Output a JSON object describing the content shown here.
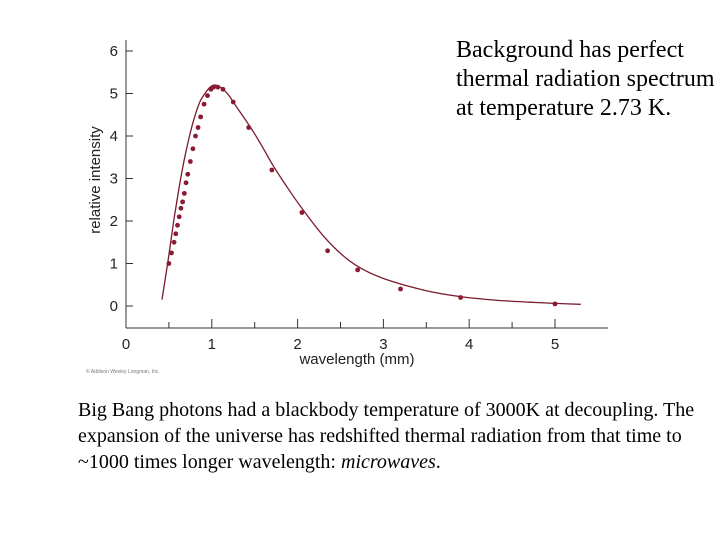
{
  "annotation": "Background has perfect thermal radiation spectrum at temperature 2.73 K.",
  "caption": {
    "text": "Big Bang photons had a blackbody temperature of 3000K at decoupling. The expansion of the universe has redshifted thermal radiation from that time to ~1000 times longer wavelength: ",
    "emphasis": "microwaves",
    "end": "."
  },
  "credit": "© Addison Wesley Longman, Inc.",
  "chart_data": {
    "type": "scatter",
    "title": "",
    "xlabel": "wavelength (mm)",
    "ylabel": "relative intensity",
    "xlim": [
      0,
      5.5
    ],
    "ylim": [
      0,
      6
    ],
    "x_ticks": [
      "0",
      "1",
      "2",
      "3",
      "4",
      "5"
    ],
    "y_ticks": [
      "0",
      "1",
      "2",
      "3",
      "4",
      "5",
      "6"
    ],
    "grid": false,
    "curve_color": "#7a1a2c",
    "point_color": "#8b1a33",
    "curve": {
      "x": [
        0.42,
        0.5,
        0.56,
        0.62,
        0.68,
        0.74,
        0.8,
        0.86,
        0.92,
        0.98,
        1.04,
        1.12,
        1.2,
        1.3,
        1.42,
        1.56,
        1.7,
        1.86,
        2.05,
        2.3,
        2.55,
        2.8,
        3.1,
        3.5,
        3.9,
        4.3,
        4.7,
        5.0,
        5.3
      ],
      "y": [
        0.15,
        1.2,
        2.05,
        2.8,
        3.45,
        4.0,
        4.45,
        4.8,
        5.0,
        5.15,
        5.2,
        5.12,
        4.95,
        4.65,
        4.3,
        3.85,
        3.35,
        2.85,
        2.3,
        1.65,
        1.15,
        0.82,
        0.58,
        0.36,
        0.22,
        0.14,
        0.09,
        0.06,
        0.04
      ]
    },
    "series": [
      {
        "x": [
          0.5,
          0.53,
          0.56,
          0.58,
          0.6,
          0.62,
          0.64,
          0.66,
          0.68,
          0.7,
          0.72,
          0.75,
          0.78,
          0.81,
          0.84,
          0.87,
          0.91,
          0.95,
          0.99,
          1.02,
          1.07,
          1.13,
          1.25,
          1.43,
          1.7,
          2.05,
          2.35,
          2.7,
          3.2,
          3.9,
          5.0
        ],
        "y": [
          1.0,
          1.25,
          1.5,
          1.7,
          1.9,
          2.1,
          2.3,
          2.45,
          2.65,
          2.9,
          3.1,
          3.4,
          3.7,
          4.0,
          4.2,
          4.45,
          4.75,
          4.95,
          5.1,
          5.15,
          5.15,
          5.1,
          4.8,
          4.2,
          3.2,
          2.2,
          1.3,
          0.85,
          0.4,
          0.2,
          0.05
        ]
      }
    ]
  }
}
